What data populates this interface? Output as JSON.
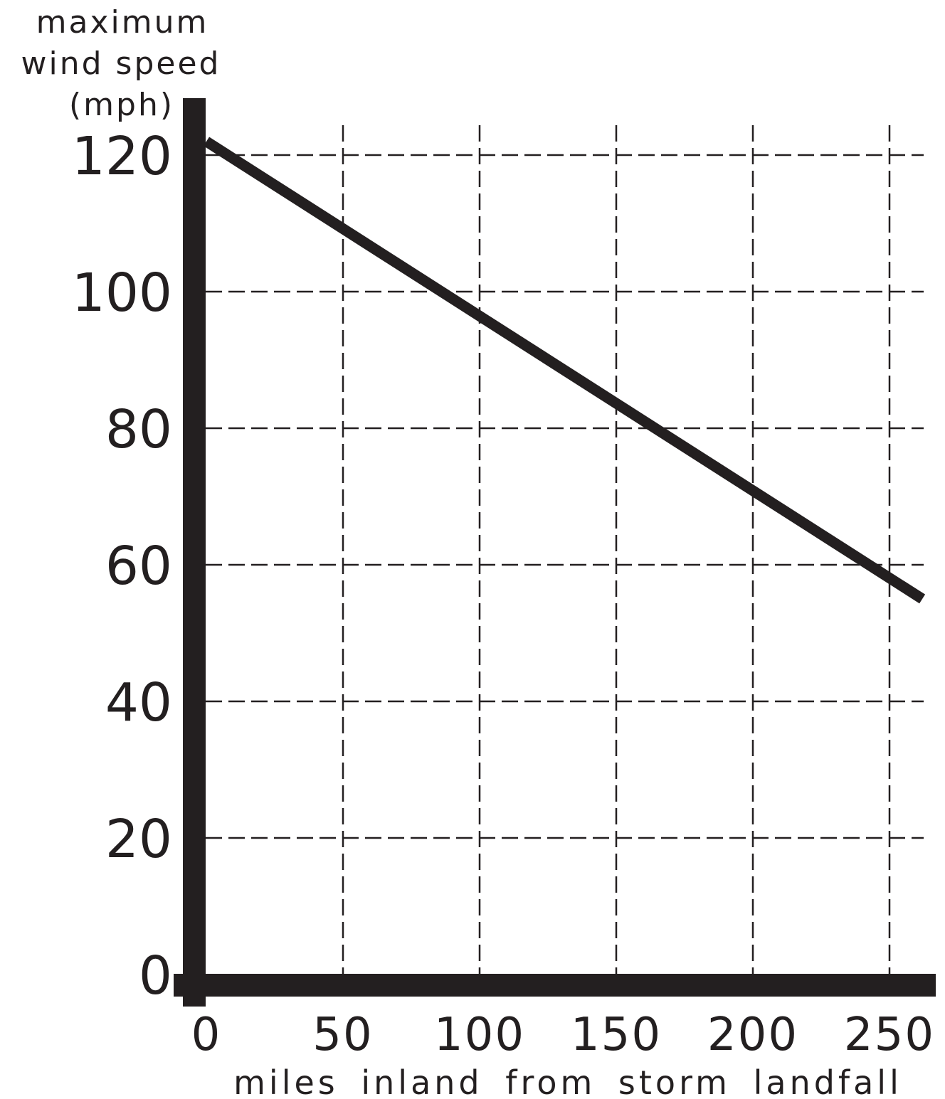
{
  "chart_data": {
    "type": "line",
    "title": "",
    "ylabel_lines": [
      "maximum",
      "wind speed",
      "(mph)"
    ],
    "xlabel": "miles inland from storm landfall",
    "x_ticks": [
      "0",
      "50",
      "100",
      "150",
      "200",
      "250"
    ],
    "y_ticks": [
      "0",
      "20",
      "40",
      "60",
      "80",
      "100",
      "120"
    ],
    "xlim": [
      0,
      262
    ],
    "ylim": [
      0,
      124
    ],
    "grid": true,
    "series": [
      {
        "x": [
          0,
          262
        ],
        "y": [
          122,
          55
        ],
        "color": "#231f20"
      }
    ]
  }
}
